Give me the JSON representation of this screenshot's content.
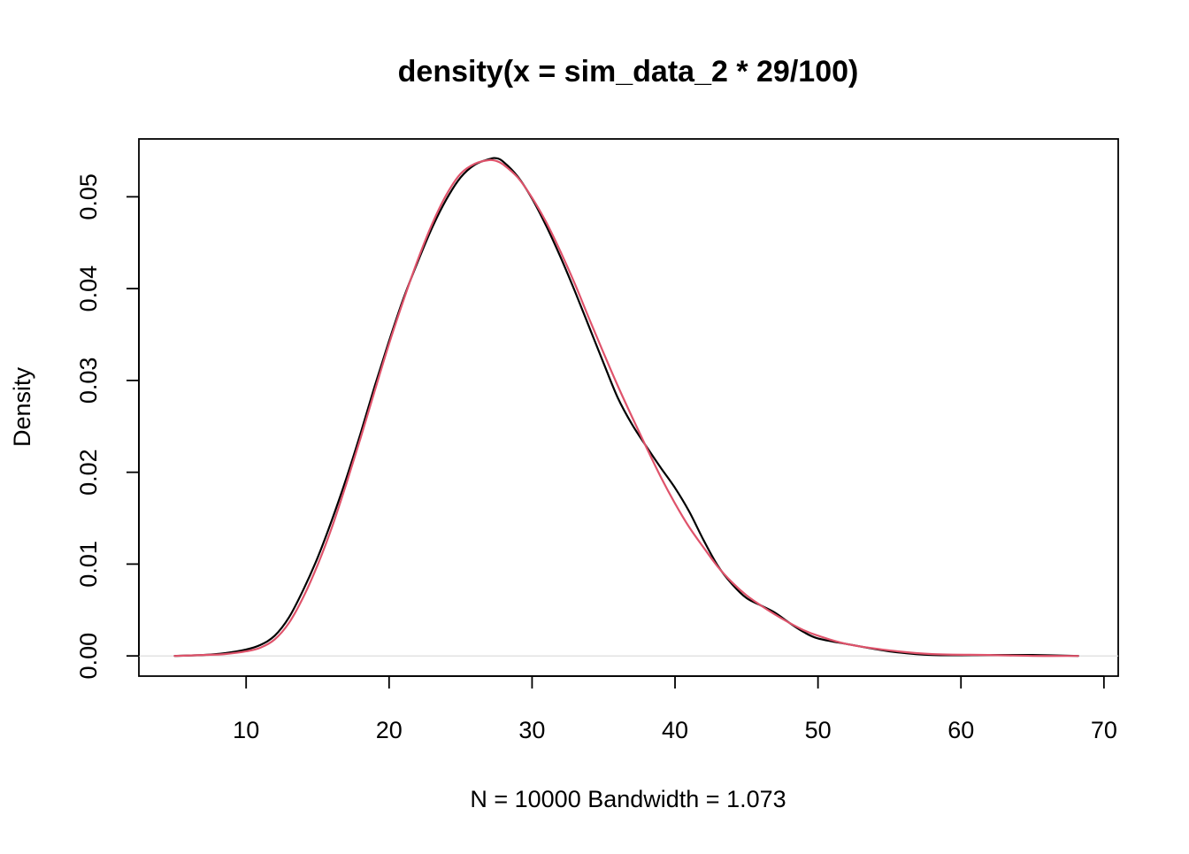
{
  "chart_data": {
    "type": "line",
    "title": "density(x = sim_data_2 * 29/100)",
    "xlabel": "N = 10000   Bandwidth = 1.073",
    "ylabel": "Density",
    "xlim": [
      2.5,
      71.0
    ],
    "ylim": [
      -0.0022,
      0.0563
    ],
    "x_ticks": [
      10,
      20,
      30,
      40,
      50,
      60,
      70
    ],
    "x_tick_labels": [
      "10",
      "20",
      "30",
      "40",
      "50",
      "60",
      "70"
    ],
    "y_ticks": [
      0.0,
      0.01,
      0.02,
      0.03,
      0.04,
      0.05
    ],
    "y_tick_labels": [
      "0.00",
      "0.01",
      "0.02",
      "0.03",
      "0.04",
      "0.05"
    ],
    "zero_line": true,
    "grid": false,
    "series": [
      {
        "color": "#000000",
        "x": [
          5.0,
          7.0,
          8.5,
          10.0,
          11.0,
          12.0,
          13.0,
          14.0,
          15.0,
          16.0,
          17.0,
          18.0,
          19.0,
          20.0,
          21.0,
          22.0,
          23.0,
          24.0,
          25.0,
          26.0,
          27.0,
          27.5,
          28.0,
          29.0,
          30.0,
          31.0,
          32.0,
          33.0,
          34.0,
          35.0,
          36.0,
          37.0,
          38.0,
          39.0,
          40.0,
          41.0,
          42.0,
          43.0,
          44.0,
          45.0,
          46.0,
          47.0,
          48.0,
          49.0,
          50.0,
          52.0,
          55.0,
          58.0,
          62.0,
          65.0,
          68.2
        ],
        "y": [
          0.0,
          0.0001,
          0.0003,
          0.0007,
          0.0012,
          0.0022,
          0.0042,
          0.0072,
          0.0107,
          0.0148,
          0.0193,
          0.0242,
          0.0294,
          0.0343,
          0.0389,
          0.0429,
          0.0466,
          0.0497,
          0.0521,
          0.0535,
          0.0541,
          0.0542,
          0.0538,
          0.0522,
          0.0498,
          0.0468,
          0.0434,
          0.0397,
          0.0358,
          0.0319,
          0.0281,
          0.0252,
          0.0228,
          0.0205,
          0.0183,
          0.0157,
          0.0126,
          0.0098,
          0.0078,
          0.0063,
          0.0055,
          0.0047,
          0.0036,
          0.0026,
          0.0019,
          0.0013,
          0.0005,
          0.0001,
          0.0001,
          0.0001,
          0.0
        ]
      },
      {
        "color": "#DF536B",
        "x": [
          5.0,
          7.0,
          8.5,
          10.0,
          11.0,
          12.0,
          13.0,
          14.0,
          15.0,
          16.0,
          17.0,
          18.0,
          19.0,
          20.0,
          21.0,
          22.0,
          23.0,
          24.0,
          25.0,
          26.0,
          27.0,
          27.5,
          28.0,
          29.0,
          30.0,
          31.0,
          32.0,
          33.0,
          34.0,
          35.0,
          36.0,
          37.0,
          38.0,
          39.0,
          40.0,
          41.0,
          42.0,
          43.0,
          44.0,
          45.0,
          46.0,
          47.0,
          48.0,
          49.0,
          50.0,
          52.0,
          55.0,
          58.0,
          62.0,
          65.0,
          68.2
        ],
        "y": [
          0.0,
          0.0001,
          0.0002,
          0.0005,
          0.0009,
          0.0018,
          0.0036,
          0.0064,
          0.0099,
          0.014,
          0.0187,
          0.0237,
          0.0289,
          0.034,
          0.0387,
          0.0431,
          0.047,
          0.0502,
          0.0525,
          0.0536,
          0.054,
          0.0539,
          0.0535,
          0.0521,
          0.0499,
          0.0472,
          0.044,
          0.0405,
          0.0367,
          0.033,
          0.0294,
          0.026,
          0.0227,
          0.0195,
          0.0166,
          0.014,
          0.0118,
          0.0097,
          0.008,
          0.0066,
          0.0055,
          0.0045,
          0.0036,
          0.0028,
          0.0022,
          0.0013,
          0.0006,
          0.0002,
          0.0001,
          0.0,
          0.0
        ]
      }
    ]
  }
}
